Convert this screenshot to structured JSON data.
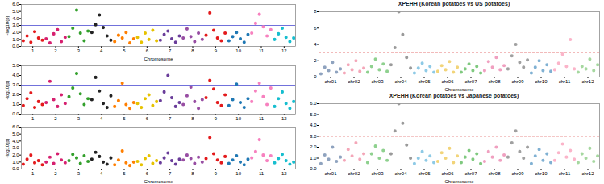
{
  "chart_data": [
    {
      "type": "scatter",
      "x_label": "Chromosome",
      "y_label": "-log10(p)",
      "marker": "circle",
      "categories": [
        "1",
        "2",
        "3",
        "4",
        "5",
        "6",
        "7",
        "8",
        "9",
        "10",
        "11",
        "12"
      ],
      "colors": [
        "#e41a1c",
        "#d6206f",
        "#33a02c",
        "#222222",
        "#ff7f00",
        "#e6c200",
        "#6a3d9a",
        "#984ea3",
        "#e31a1c",
        "#1f78b4",
        "#f781bf",
        "#17becf"
      ],
      "ylim": [
        0,
        6
      ],
      "yticks": [
        0,
        1,
        2,
        3,
        4,
        5,
        6
      ],
      "threshold": {
        "value": 3,
        "color": "#3333cc",
        "line_style": "solid"
      },
      "values": [
        [
          0.8,
          1.5,
          0.6,
          2.1,
          1.2,
          0.9
        ],
        [
          1.1,
          0.5,
          1.8,
          2.4,
          0.7,
          1.3
        ],
        [
          1.4,
          2.6,
          5.2,
          1.9,
          0.8,
          2.2
        ],
        [
          2.0,
          3.1,
          4.5,
          2.7,
          1.5,
          0.9
        ],
        [
          0.7,
          1.6,
          1.2,
          2.0,
          0.5,
          1.1
        ],
        [
          1.3,
          0.6,
          1.9,
          1.0,
          2.3,
          0.8
        ],
        [
          0.9,
          1.7,
          2.2,
          1.1,
          0.6,
          1.5
        ],
        [
          1.2,
          2.5,
          1.4,
          0.7,
          1.9,
          1.0
        ],
        [
          1.6,
          4.8,
          2.3,
          1.2,
          0.8,
          1.9
        ],
        [
          0.8,
          1.4,
          2.0,
          1.1,
          0.6,
          1.7
        ],
        [
          1.9,
          3.3,
          4.6,
          2.8,
          1.5,
          2.4
        ],
        [
          1.0,
          1.8,
          2.6,
          1.3,
          0.7,
          1.2
        ]
      ]
    },
    {
      "type": "scatter",
      "y_label": "-log10(p)",
      "marker": "circle",
      "categories": [
        "1",
        "2",
        "3",
        "4",
        "5",
        "6",
        "7",
        "8",
        "9",
        "10",
        "11",
        "12"
      ],
      "colors": [
        "#e41a1c",
        "#d6206f",
        "#33a02c",
        "#222222",
        "#ff7f00",
        "#e6c200",
        "#6a3d9a",
        "#984ea3",
        "#e31a1c",
        "#1f78b4",
        "#f781bf",
        "#17becf"
      ],
      "ylim": [
        0,
        5
      ],
      "yticks": [
        0,
        1,
        2,
        3,
        4,
        5
      ],
      "threshold": {
        "value": 3,
        "color": "#3333cc",
        "line_style": "solid"
      },
      "values": [
        [
          0.9,
          1.6,
          2.2,
          0.7,
          1.3,
          1.0
        ],
        [
          1.2,
          3.4,
          1.5,
          0.8,
          2.0,
          1.1
        ],
        [
          1.8,
          2.7,
          4.2,
          2.1,
          1.0,
          1.6
        ],
        [
          1.5,
          3.8,
          2.4,
          1.1,
          0.7,
          1.9
        ],
        [
          0.8,
          1.4,
          3.2,
          1.0,
          0.6,
          1.2
        ],
        [
          1.1,
          0.7,
          1.6,
          2.0,
          0.9,
          1.3
        ],
        [
          1.4,
          2.3,
          4.0,
          1.7,
          0.8,
          1.2
        ],
        [
          1.0,
          1.9,
          2.8,
          1.3,
          0.6,
          1.5
        ],
        [
          1.7,
          3.5,
          2.6,
          1.2,
          0.9,
          2.0
        ],
        [
          0.9,
          1.5,
          3.1,
          1.2,
          0.7,
          1.6
        ],
        [
          1.3,
          2.4,
          3.2,
          1.8,
          1.0,
          2.7
        ],
        [
          0.8,
          1.6,
          2.3,
          1.1,
          0.6,
          1.3
        ]
      ]
    },
    {
      "type": "scatter",
      "x_label": "Chromosome",
      "y_label": "-log10(p)",
      "marker": "circle",
      "categories": [
        "1",
        "2",
        "3",
        "4",
        "5",
        "6",
        "7",
        "8",
        "9",
        "10",
        "11",
        "12"
      ],
      "colors": [
        "#e41a1c",
        "#d6206f",
        "#33a02c",
        "#222222",
        "#ff7f00",
        "#e6c200",
        "#6a3d9a",
        "#984ea3",
        "#e31a1c",
        "#1f78b4",
        "#f781bf",
        "#17becf"
      ],
      "ylim": [
        0,
        6
      ],
      "yticks": [
        0,
        1,
        2,
        3,
        4,
        5,
        6
      ],
      "threshold": {
        "value": 3,
        "color": "#3333cc",
        "line_style": "solid"
      },
      "values": [
        [
          0.7,
          1.4,
          2.0,
          0.9,
          1.2,
          0.6
        ],
        [
          1.0,
          1.7,
          0.8,
          2.2,
          1.3,
          0.9
        ],
        [
          1.2,
          2.1,
          1.6,
          0.8,
          1.9,
          1.1
        ],
        [
          1.4,
          2.4,
          1.8,
          1.0,
          0.7,
          1.6
        ],
        [
          0.6,
          1.3,
          2.6,
          0.9,
          0.5,
          1.0
        ],
        [
          1.1,
          0.6,
          1.5,
          1.9,
          0.8,
          1.2
        ],
        [
          0.9,
          1.6,
          2.3,
          1.2,
          0.7,
          1.4
        ],
        [
          1.3,
          2.0,
          1.5,
          0.8,
          1.7,
          1.0
        ],
        [
          1.5,
          4.5,
          2.2,
          1.3,
          0.9,
          1.8
        ],
        [
          0.8,
          1.3,
          1.9,
          1.0,
          0.6,
          1.4
        ],
        [
          1.6,
          2.5,
          4.2,
          2.0,
          1.2,
          1.9
        ],
        [
          0.9,
          1.5,
          2.1,
          1.2,
          0.7,
          1.0
        ]
      ]
    },
    {
      "type": "scatter",
      "title": "XPEHH (Korean potatoes vs US potatoes)",
      "x_label": "Chromosome",
      "marker": "circle",
      "categories": [
        "chr01",
        "chr02",
        "chr03",
        "chr04",
        "chr05",
        "chr06",
        "chr07",
        "chr08",
        "chr09",
        "chr10",
        "chr11",
        "chr12"
      ],
      "colors": [
        "#8fa3bf",
        "#f4a6b8",
        "#8fd18f",
        "#9a9a9a",
        "#8ecae6",
        "#f2d479",
        "#7fc97f",
        "#f0a0c0",
        "#a0a0a0",
        "#80b1d3",
        "#fbb4c9",
        "#a6d8a0"
      ],
      "ylim": [
        0,
        8
      ],
      "yticks": [
        0,
        2,
        4,
        6,
        8
      ],
      "threshold": {
        "value": 3,
        "color": "#e06060",
        "line_style": "dashed"
      },
      "values": [
        [
          0.4,
          1.2,
          0.8,
          1.8,
          0.6,
          1.0
        ],
        [
          0.5,
          1.5,
          0.9,
          2.0,
          0.7,
          1.1
        ],
        [
          0.6,
          1.3,
          2.2,
          0.9,
          1.6,
          0.7
        ],
        [
          1.5,
          3.6,
          8.0,
          5.2,
          2.4,
          1.1
        ],
        [
          0.5,
          1.1,
          1.7,
          0.8,
          1.3,
          0.6
        ],
        [
          0.7,
          1.4,
          0.9,
          1.9,
          0.6,
          1.2
        ],
        [
          0.6,
          1.0,
          1.6,
          0.8,
          1.3,
          0.5
        ],
        [
          0.8,
          1.9,
          1.2,
          2.4,
          0.9,
          1.4
        ],
        [
          1.0,
          2.6,
          4.0,
          1.8,
          1.2,
          2.1
        ],
        [
          0.5,
          1.2,
          2.0,
          0.8,
          1.5,
          0.7
        ],
        [
          0.9,
          1.7,
          2.8,
          1.3,
          4.6,
          1.0
        ],
        [
          0.6,
          1.3,
          1.0,
          2.2,
          0.8,
          1.5
        ]
      ]
    },
    {
      "type": "scatter",
      "title": "XPEHH (Korean potatoes vs Japanese potatoes)",
      "x_label": "Chromosome",
      "marker": "circle",
      "categories": [
        "chr01",
        "chr02",
        "chr03",
        "chr04",
        "chr05",
        "chr06",
        "chr07",
        "chr08",
        "chr09",
        "chr10",
        "chr11",
        "chr12"
      ],
      "colors": [
        "#8fa3bf",
        "#f4a6b8",
        "#8fd18f",
        "#9a9a9a",
        "#8ecae6",
        "#f2d479",
        "#7fc97f",
        "#f0a0c0",
        "#a0a0a0",
        "#80b1d3",
        "#fbb4c9",
        "#a6d8a0"
      ],
      "ylim": [
        0,
        6
      ],
      "yticks": [
        0,
        1,
        2,
        3,
        4,
        5,
        6
      ],
      "threshold": {
        "value": 3,
        "color": "#e06060",
        "line_style": "dashed"
      },
      "values": [
        [
          0.5,
          1.3,
          0.9,
          2.0,
          0.7,
          1.1
        ],
        [
          0.8,
          1.8,
          1.2,
          2.4,
          0.9,
          1.4
        ],
        [
          0.6,
          1.4,
          2.1,
          1.0,
          1.7,
          0.8
        ],
        [
          1.4,
          3.5,
          6.0,
          4.2,
          2.2,
          1.0
        ],
        [
          0.5,
          1.0,
          1.6,
          0.8,
          1.2,
          0.6
        ],
        [
          0.7,
          1.5,
          1.0,
          1.9,
          0.6,
          1.2
        ],
        [
          0.6,
          1.1,
          1.7,
          0.9,
          1.4,
          0.5
        ],
        [
          0.7,
          1.6,
          1.1,
          2.0,
          0.8,
          1.3
        ],
        [
          1.1,
          2.4,
          3.5,
          1.6,
          1.0,
          2.0
        ],
        [
          0.5,
          1.2,
          1.8,
          0.8,
          1.4,
          0.6
        ],
        [
          0.8,
          1.5,
          2.3,
          1.1,
          1.7,
          0.9
        ],
        [
          0.6,
          1.4,
          1.0,
          1.9,
          0.7,
          1.2
        ]
      ]
    }
  ]
}
